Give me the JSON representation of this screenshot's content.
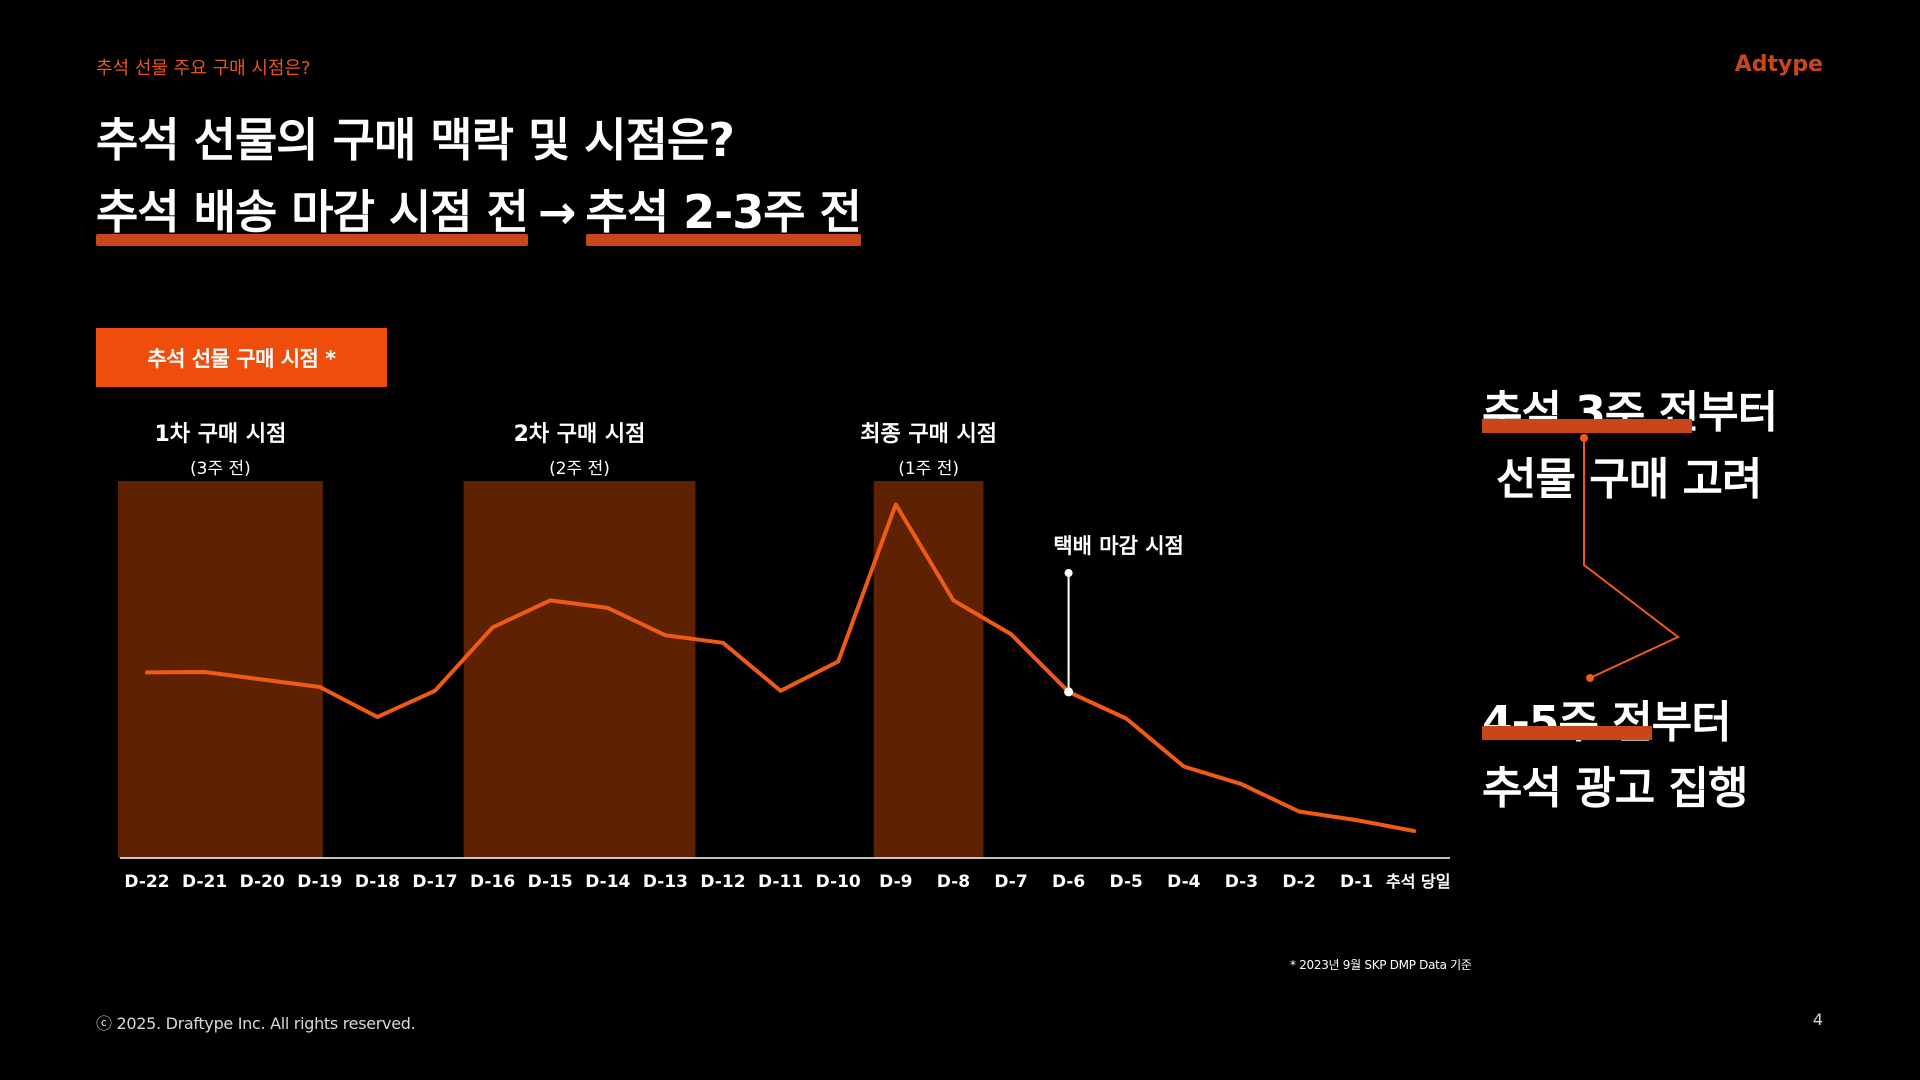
{
  "header": {
    "breadcrumb": "추석 선물 주요 구매 시점은?",
    "brand": "Adtype"
  },
  "title": {
    "line1": "추석 선물의 구매 맥락 및 시점은?",
    "line2_part1": "추석 배송 마감 시점 전",
    "line2_arrow": "→",
    "line2_part2": "추석 2-3주 전"
  },
  "badge": {
    "label": "추석 선물 구매 시점 *"
  },
  "chart_data": {
    "type": "line",
    "categories": [
      "D-22",
      "D-21",
      "D-20",
      "D-19",
      "D-18",
      "D-17",
      "D-16",
      "D-15",
      "D-14",
      "D-13",
      "D-12",
      "D-11",
      "D-10",
      "D-9",
      "D-8",
      "D-7",
      "D-6",
      "D-5",
      "D-4",
      "D-3",
      "D-2",
      "D-1",
      "추석 당일"
    ],
    "series": [
      {
        "values": [
          49.5,
          49.6,
          47.6,
          45.6,
          37.6,
          44.6,
          61.5,
          68.7,
          66.7,
          59.4,
          57.4,
          44.6,
          52.4,
          94.3,
          68.7,
          59.7,
          44.3,
          37.2,
          24.4,
          19.7,
          12.4,
          10.1,
          7.2
        ]
      }
    ],
    "ylim": [
      0,
      100
    ],
    "periods": [
      {
        "title": "1차 구매 시점",
        "subtitle": "(3주 전)",
        "start": "D-22",
        "end": "D-19"
      },
      {
        "title": "2차 구매 시점",
        "subtitle": "(2주 전)",
        "start": "D-16",
        "end": "D-13"
      },
      {
        "title": "최종 구매 시점",
        "subtitle": "(1주 전)",
        "start": "D-9",
        "end": "D-8"
      }
    ],
    "annotation": {
      "label": "택배 마감 시점",
      "at": "D-6"
    },
    "colors": {
      "line": "#ef5a14",
      "period_fill": "#5e2203",
      "axis": "#ffffff"
    }
  },
  "side": {
    "line1a": "추석 3주 전부터",
    "line1b": "선물 구매 고려",
    "line2a": "4-5주 전부터",
    "line2b": "추석 광고 집행"
  },
  "footnote": "* 2023년 9월 SKP DMP Data 기준",
  "footer": {
    "copyright": "ⓒ 2025. Draftype Inc. All rights reserved.",
    "page": "4"
  }
}
